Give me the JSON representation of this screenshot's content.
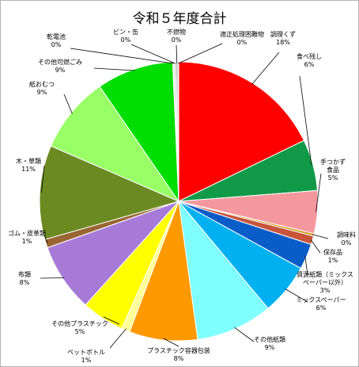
{
  "chart_data": {
    "type": "pie",
    "title": "令和５年度合計",
    "legend": "none",
    "slices": [
      {
        "label": "調理くず",
        "value": 18,
        "pct_label": "18%",
        "color": "#ff0000"
      },
      {
        "label": "食べ残し",
        "value": 6,
        "pct_label": "6%",
        "color": "#109a48"
      },
      {
        "label": "手つかず食品",
        "label_lines": [
          "手つかず",
          "食品"
        ],
        "value": 5,
        "pct_label": "5%",
        "color": "#f5989d"
      },
      {
        "label": "調味料",
        "value": 0.3,
        "pct_label": "0%",
        "color": "#c79c1c"
      },
      {
        "label": "保存品",
        "value": 1,
        "pct_label": "1%",
        "color": "#c8543c"
      },
      {
        "label": "資源紙類（ミックスペーパー以外）",
        "label_lines": [
          "資源紙類（ミックス",
          "ペーパー以外）"
        ],
        "value": 3,
        "pct_label": "3%",
        "color": "#0a5cc8"
      },
      {
        "label": "ミックスペーパー",
        "value": 6,
        "pct_label": "6%",
        "color": "#00b0f0"
      },
      {
        "label": "その他紙類",
        "value": 9,
        "pct_label": "9%",
        "color": "#80ffff"
      },
      {
        "label": "プラスチック容器包装",
        "value": 8,
        "pct_label": "8%",
        "color": "#ff9900"
      },
      {
        "label": "ペットボトル",
        "value": 1,
        "pct_label": "1%",
        "color": "#ffff99"
      },
      {
        "label": "その他プラスチック",
        "value": 5,
        "pct_label": "5%",
        "color": "#ffff00"
      },
      {
        "label": "布類",
        "value": 8,
        "pct_label": "8%",
        "color": "#a77ad8"
      },
      {
        "label": "ゴム・皮革類",
        "value": 1,
        "pct_label": "1%",
        "color": "#996633"
      },
      {
        "label": "木・草類",
        "value": 11,
        "pct_label": "11%",
        "color": "#6b8a22"
      },
      {
        "label": "紙おむつ",
        "value": 9,
        "pct_label": "9%",
        "color": "#99ff66"
      },
      {
        "label": "その他可燃ごみ",
        "value": 9,
        "pct_label": "9%",
        "color": "#00dd00"
      },
      {
        "label": "乾電池",
        "value": 0.2,
        "pct_label": "0%",
        "color": "#e0e0e0"
      },
      {
        "label": "ビン・缶",
        "value": 0.2,
        "pct_label": "0%",
        "color": "#c8c8c8"
      },
      {
        "label": "不燃物",
        "value": 0.2,
        "pct_label": "0%",
        "color": "#a0a0a0"
      },
      {
        "label": "適正処理困難物",
        "value": 0.1,
        "pct_label": "0%",
        "color": "#808080"
      }
    ]
  }
}
